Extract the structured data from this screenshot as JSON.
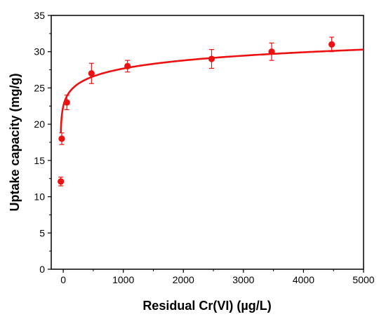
{
  "chart_data": {
    "type": "scatter",
    "title": "",
    "xlabel": "Residual Cr(VI) (µg/L)",
    "ylabel": "Uptake capacity (mg/g)",
    "xlim": [
      -200,
      5000
    ],
    "ylim": [
      0,
      35
    ],
    "x_ticks": [
      0,
      1000,
      2000,
      3000,
      4000,
      5000
    ],
    "y_ticks": [
      0,
      5,
      10,
      15,
      20,
      25,
      30,
      35
    ],
    "grid": false,
    "legend": "none",
    "series": [
      {
        "kind": "points_with_error_bars",
        "color": "#ee1111",
        "x": [
          -40,
          -25,
          60,
          470,
          1070,
          2470,
          3470,
          4470
        ],
        "y": [
          12.1,
          18.0,
          23.0,
          27.0,
          28.0,
          29.0,
          30.0,
          31.0
        ],
        "err": [
          0.6,
          0.8,
          1.0,
          1.4,
          0.8,
          1.3,
          1.2,
          1.0
        ]
      },
      {
        "kind": "fit_curve",
        "color": "#ee1111",
        "model": "log",
        "x_start": -40,
        "x_end": 5000,
        "coef_a": 27.6,
        "coef_b": 1.66,
        "x_offset": 45,
        "x_scale": 1000
      }
    ]
  }
}
